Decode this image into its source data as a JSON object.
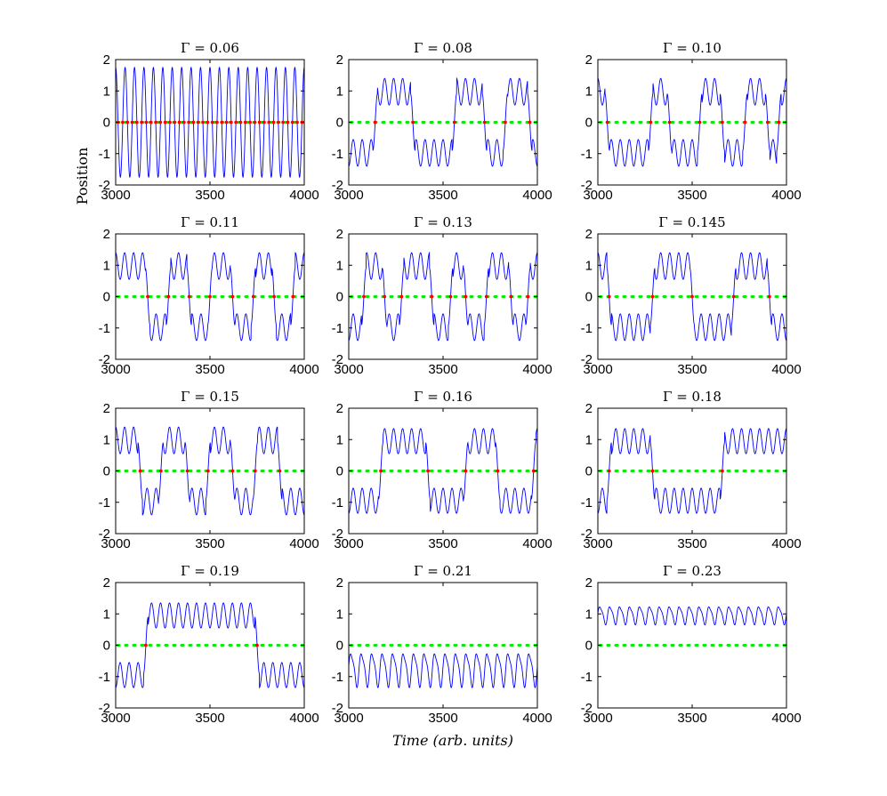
{
  "figure": {
    "shared_ylabel": "Position",
    "shared_xlabel": "Time (arb. units)",
    "title_prefix": "Γ = ",
    "colors": {
      "signal": "#0000ff",
      "zero_line": "#00ee00",
      "crossing_marker": "#ff0000",
      "axes": "#000000"
    }
  },
  "chart_data": [
    {
      "type": "line",
      "title": "Γ = 0.06",
      "xlim": [
        3000,
        4000
      ],
      "ylim": [
        -2,
        2
      ],
      "xticks": [
        3000,
        3500,
        4000
      ],
      "yticks": [
        -2,
        -1,
        0,
        1,
        2
      ],
      "signal": {
        "mode": "fast_oscillation",
        "cycles": 20,
        "amplitude": 1.75
      },
      "zero_line": {
        "y": 0
      }
    },
    {
      "type": "line",
      "title": "Γ = 0.08",
      "xlim": [
        3000,
        4000
      ],
      "ylim": [
        -2,
        2
      ],
      "xticks": [
        3000,
        3500,
        4000
      ],
      "yticks": [
        -2,
        -1,
        0,
        1,
        2
      ],
      "signal": {
        "mode": "switching",
        "switch_times": [
          3000,
          3140,
          3340,
          3560,
          3720,
          3830,
          3960
        ],
        "start_state": -1,
        "amplitude": 1.4
      },
      "zero_line": {
        "y": 0
      }
    },
    {
      "type": "line",
      "title": "Γ = 0.10",
      "xlim": [
        3000,
        4000
      ],
      "ylim": [
        -2,
        2
      ],
      "xticks": [
        3000,
        3500,
        4000
      ],
      "yticks": [
        -2,
        -1,
        0,
        1,
        2
      ],
      "signal": {
        "mode": "switching",
        "switch_times": [
          3000,
          3050,
          3280,
          3380,
          3540,
          3660,
          3780,
          3900,
          3960
        ],
        "start_state": 1,
        "amplitude": 1.4
      },
      "zero_line": {
        "y": 0
      }
    },
    {
      "type": "line",
      "title": "Γ = 0.11",
      "xlim": [
        3000,
        4000
      ],
      "ylim": [
        -2,
        2
      ],
      "xticks": [
        3000,
        3500,
        4000
      ],
      "yticks": [
        -2,
        -1,
        0,
        1,
        2
      ],
      "signal": {
        "mode": "switching",
        "switch_times": [
          3000,
          3170,
          3280,
          3390,
          3500,
          3620,
          3730,
          3840,
          3940
        ],
        "start_state": 1,
        "amplitude": 1.4
      },
      "zero_line": {
        "y": 0
      }
    },
    {
      "type": "line",
      "title": "Γ = 0.13",
      "xlim": [
        3000,
        4000
      ],
      "ylim": [
        -2,
        2
      ],
      "xticks": [
        3000,
        3500,
        4000
      ],
      "yticks": [
        -2,
        -1,
        0,
        1,
        2
      ],
      "signal": {
        "mode": "switching",
        "switch_times": [
          3000,
          3080,
          3190,
          3280,
          3440,
          3540,
          3620,
          3730,
          3860,
          3950
        ],
        "start_state": -1,
        "amplitude": 1.4
      },
      "zero_line": {
        "y": 0
      }
    },
    {
      "type": "line",
      "title": "Γ = 0.145",
      "xlim": [
        3000,
        4000
      ],
      "ylim": [
        -2,
        2
      ],
      "xticks": [
        3000,
        3500,
        4000
      ],
      "yticks": [
        -2,
        -1,
        0,
        1,
        2
      ],
      "signal": {
        "mode": "switching",
        "switch_times": [
          3000,
          3060,
          3290,
          3500,
          3720,
          3910
        ],
        "start_state": 1,
        "amplitude": 1.4
      },
      "zero_line": {
        "y": 0
      }
    },
    {
      "type": "line",
      "title": "Γ = 0.15",
      "xlim": [
        3000,
        4000
      ],
      "ylim": [
        -2,
        2
      ],
      "xticks": [
        3000,
        3500,
        4000
      ],
      "yticks": [
        -2,
        -1,
        0,
        1,
        2
      ],
      "signal": {
        "mode": "switching",
        "switch_times": [
          3000,
          3130,
          3240,
          3380,
          3490,
          3620,
          3740,
          3870
        ],
        "start_state": 1,
        "amplitude": 1.4
      },
      "zero_line": {
        "y": 0
      }
    },
    {
      "type": "line",
      "title": "Γ = 0.16",
      "xlim": [
        3000,
        4000
      ],
      "ylim": [
        -2,
        2
      ],
      "xticks": [
        3000,
        3500,
        4000
      ],
      "yticks": [
        -2,
        -1,
        0,
        1,
        2
      ],
      "signal": {
        "mode": "switching",
        "switch_times": [
          3000,
          3170,
          3420,
          3620,
          3790,
          3980
        ],
        "start_state": -1,
        "amplitude": 1.35
      },
      "zero_line": {
        "y": 0
      }
    },
    {
      "type": "line",
      "title": "Γ = 0.18",
      "xlim": [
        3000,
        4000
      ],
      "ylim": [
        -2,
        2
      ],
      "xticks": [
        3000,
        3500,
        4000
      ],
      "yticks": [
        -2,
        -1,
        0,
        1,
        2
      ],
      "signal": {
        "mode": "switching",
        "switch_times": [
          3000,
          3060,
          3290,
          3660
        ],
        "start_state": -1,
        "amplitude": 1.35
      },
      "zero_line": {
        "y": 0
      }
    },
    {
      "type": "line",
      "title": "Γ = 0.19",
      "xlim": [
        3000,
        4000
      ],
      "ylim": [
        -2,
        2
      ],
      "xticks": [
        3000,
        3500,
        4000
      ],
      "yticks": [
        -2,
        -1,
        0,
        1,
        2
      ],
      "signal": {
        "mode": "switching",
        "switch_times": [
          3000,
          3160,
          3750
        ],
        "start_state": -1,
        "amplitude": 1.35
      },
      "zero_line": {
        "y": 0
      }
    },
    {
      "type": "line",
      "title": "Γ = 0.21",
      "xlim": [
        3000,
        4000
      ],
      "ylim": [
        -2,
        2
      ],
      "xticks": [
        3000,
        3500,
        4000
      ],
      "yticks": [
        -2,
        -1,
        0,
        1,
        2
      ],
      "signal": {
        "mode": "steady",
        "center": -0.75,
        "amplitude": 0.6,
        "cycles": 18
      },
      "zero_line": {
        "y": 0
      }
    },
    {
      "type": "line",
      "title": "Γ = 0.23",
      "xlim": [
        3000,
        4000
      ],
      "ylim": [
        -2,
        2
      ],
      "xticks": [
        3000,
        3500,
        4000
      ],
      "yticks": [
        -2,
        -1,
        0,
        1,
        2
      ],
      "signal": {
        "mode": "steady",
        "center": 0.97,
        "amplitude": 0.32,
        "cycles": 19
      },
      "zero_line": {
        "y": 0
      }
    }
  ]
}
